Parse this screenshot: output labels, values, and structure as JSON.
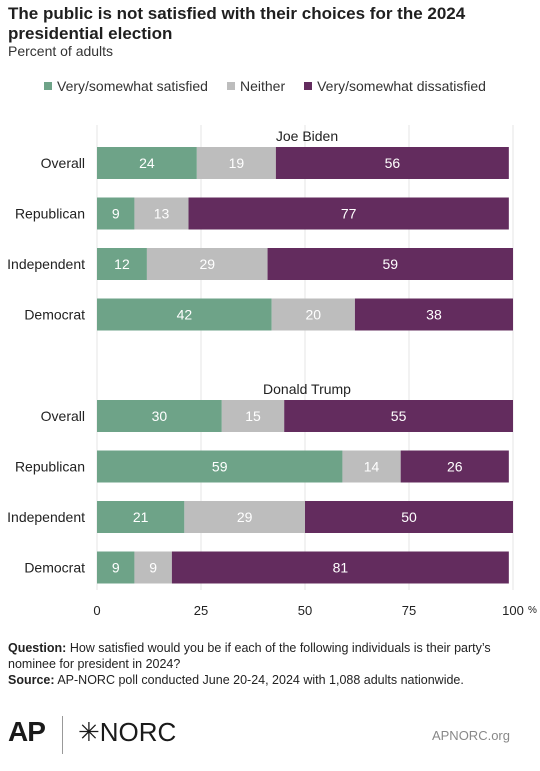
{
  "header": {
    "title": "The public is not satisfied with their choices for the 2024 presidential election",
    "subtitle": "Percent of adults"
  },
  "legend": [
    {
      "label": "Very/somewhat satisfied",
      "color": "#6ea388"
    },
    {
      "label": "Neither",
      "color": "#bdbdbd"
    },
    {
      "label": "Very/somewhat dissatisfied",
      "color": "#632c5e"
    }
  ],
  "chart_data": {
    "type": "bar",
    "orientation": "horizontal",
    "stacked": true,
    "xlim": [
      0,
      100
    ],
    "xticks": [
      "0",
      "25",
      "50",
      "75",
      "100"
    ],
    "x_unit": "%",
    "groups": [
      {
        "name": "Joe Biden",
        "categories": [
          "Overall",
          "Republican",
          "Independent",
          "Democrat"
        ],
        "series": [
          {
            "name": "Very/somewhat satisfied",
            "values": [
              24,
              9,
              12,
              42
            ]
          },
          {
            "name": "Neither",
            "values": [
              19,
              13,
              29,
              20
            ]
          },
          {
            "name": "Very/somewhat dissatisfied",
            "values": [
              56,
              77,
              59,
              38
            ]
          }
        ]
      },
      {
        "name": "Donald Trump",
        "categories": [
          "Overall",
          "Republican",
          "Independent",
          "Democrat"
        ],
        "series": [
          {
            "name": "Very/somewhat satisfied",
            "values": [
              30,
              59,
              21,
              9
            ]
          },
          {
            "name": "Neither",
            "values": [
              15,
              14,
              29,
              9
            ]
          },
          {
            "name": "Very/somewhat dissatisfied",
            "values": [
              55,
              26,
              50,
              81
            ]
          }
        ]
      }
    ]
  },
  "footer": {
    "question_label": "Question:",
    "question_text": "How satisfied would you be if each of the following individuals is their party’s nominee for president in 2024?",
    "source_label": "Source:",
    "source_text": "AP-NORC poll conducted June 20-24, 2024 with 1,088 adults nationwide."
  },
  "branding": {
    "ap_logo": "AP",
    "norc_logo": "✳NORC",
    "url": "APNORC.org"
  }
}
